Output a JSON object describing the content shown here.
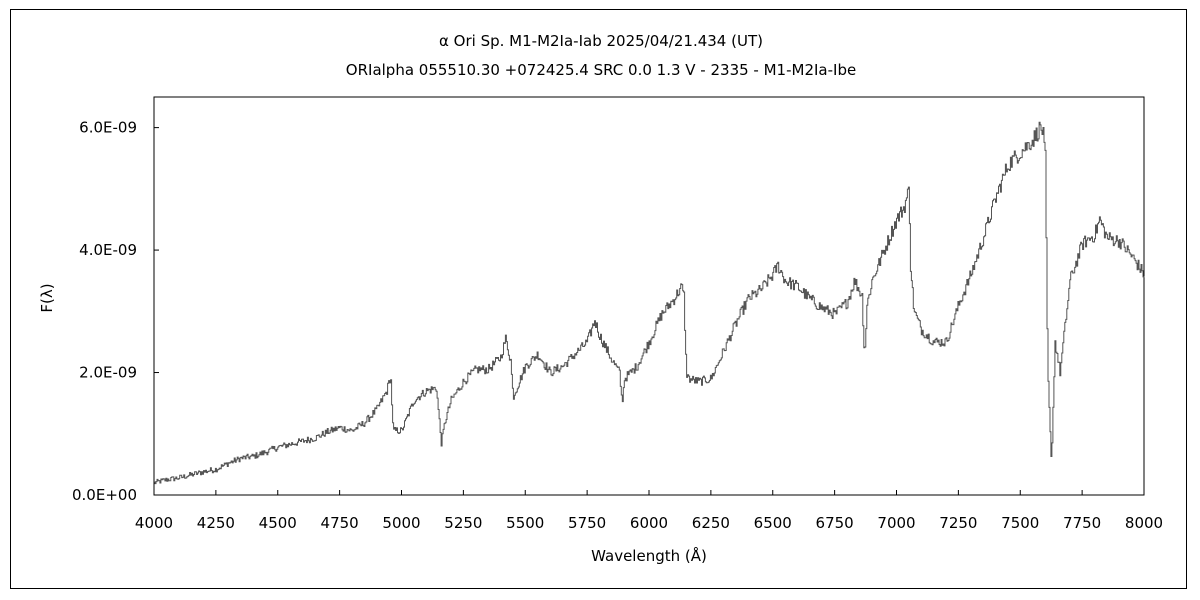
{
  "chart_data": {
    "type": "line",
    "title": "α  Ori     Sp. M1-M2Ia-Iab    2025/04/21.434 (UT)",
    "subtitle": "ORIalpha 055510.30 +072425.4 SRC 0.0 1.3 V - 2335 - M1-M2Ia-Ibe",
    "xlabel": "Wavelength (Å)",
    "ylabel": "F(λ)",
    "xlim": [
      4000,
      8000
    ],
    "ylim": [
      0,
      6.5e-09
    ],
    "x_ticks": [
      4000,
      4250,
      4500,
      4750,
      5000,
      5250,
      5500,
      5750,
      6000,
      6250,
      6500,
      6750,
      7000,
      7250,
      7500,
      7750,
      8000
    ],
    "x_tick_labels": [
      "4000",
      "4250",
      "4500",
      "4750",
      "5000",
      "5250",
      "5500",
      "5750",
      "6000",
      "6250",
      "6500",
      "6750",
      "7000",
      "7250",
      "7500",
      "7750",
      "8000"
    ],
    "y_ticks": [
      0,
      2e-09,
      4e-09,
      6e-09
    ],
    "y_tick_labels": [
      "0.0E+00",
      "2.0E-09",
      "4.0E-09",
      "6.0E-09"
    ],
    "grid": false,
    "series": [
      {
        "color": "#555555",
        "x": [
          4000,
          4050,
          4100,
          4150,
          4200,
          4250,
          4300,
          4350,
          4400,
          4450,
          4500,
          4550,
          4600,
          4650,
          4700,
          4750,
          4800,
          4850,
          4900,
          4940,
          4955,
          4965,
          5000,
          5050,
          5100,
          5140,
          5160,
          5175,
          5200,
          5250,
          5300,
          5350,
          5400,
          5420,
          5440,
          5450,
          5500,
          5550,
          5600,
          5650,
          5700,
          5750,
          5780,
          5800,
          5850,
          5880,
          5890,
          5900,
          5950,
          6000,
          6050,
          6100,
          6130,
          6140,
          6150,
          6160,
          6200,
          6250,
          6300,
          6350,
          6400,
          6450,
          6500,
          6520,
          6550,
          6600,
          6650,
          6700,
          6750,
          6800,
          6830,
          6860,
          6870,
          6880,
          6900,
          6950,
          7000,
          7030,
          7050,
          7055,
          7070,
          7100,
          7150,
          7200,
          7250,
          7300,
          7350,
          7400,
          7450,
          7500,
          7550,
          7580,
          7590,
          7600,
          7610,
          7625,
          7640,
          7660,
          7700,
          7750,
          7800,
          7820,
          7850,
          7900,
          7950,
          8000
        ],
        "y": [
          2e-10,
          2.5e-10,
          2.8e-10,
          3.3e-10,
          3.8e-10,
          4.2e-10,
          5.2e-10,
          6e-10,
          6.3e-10,
          7e-10,
          7.8e-10,
          8.3e-10,
          8.8e-10,
          9.3e-10,
          1.03e-09,
          1.1e-09,
          1.05e-09,
          1.18e-09,
          1.4e-09,
          1.7e-09,
          1.95e-09,
          1.05e-09,
          1.05e-09,
          1.55e-09,
          1.7e-09,
          1.75e-09,
          8.5e-10,
          1.2e-09,
          1.55e-09,
          1.85e-09,
          2.05e-09,
          2.05e-09,
          2.25e-09,
          2.55e-09,
          2.2e-09,
          1.6e-09,
          2.1e-09,
          2.3e-09,
          2e-09,
          2.1e-09,
          2.3e-09,
          2.5e-09,
          2.85e-09,
          2.6e-09,
          2.2e-09,
          2e-09,
          1.5e-09,
          1.9e-09,
          2.1e-09,
          2.5e-09,
          2.95e-09,
          3.2e-09,
          3.4e-09,
          3.25e-09,
          2e-09,
          1.9e-09,
          1.85e-09,
          1.9e-09,
          2.35e-09,
          2.8e-09,
          3.2e-09,
          3.35e-09,
          3.6e-09,
          3.75e-09,
          3.5e-09,
          3.4e-09,
          3.2e-09,
          3.05e-09,
          2.95e-09,
          3.15e-09,
          3.5e-09,
          3.25e-09,
          2.25e-09,
          3.1e-09,
          3.5e-09,
          4e-09,
          4.5e-09,
          4.7e-09,
          5e-09,
          3.8e-09,
          3e-09,
          2.7e-09,
          2.5e-09,
          2.5e-09,
          3.1e-09,
          3.6e-09,
          4.2e-09,
          4.85e-09,
          5.4e-09,
          5.6e-09,
          5.8e-09,
          6e-09,
          5.95e-09,
          5.5e-09,
          2e-09,
          5e-10,
          2.5e-09,
          2e-09,
          3.5e-09,
          4.1e-09,
          4.25e-09,
          4.5e-09,
          4.2e-09,
          4.15e-09,
          3.9e-09,
          3.6e-09
        ]
      }
    ]
  }
}
